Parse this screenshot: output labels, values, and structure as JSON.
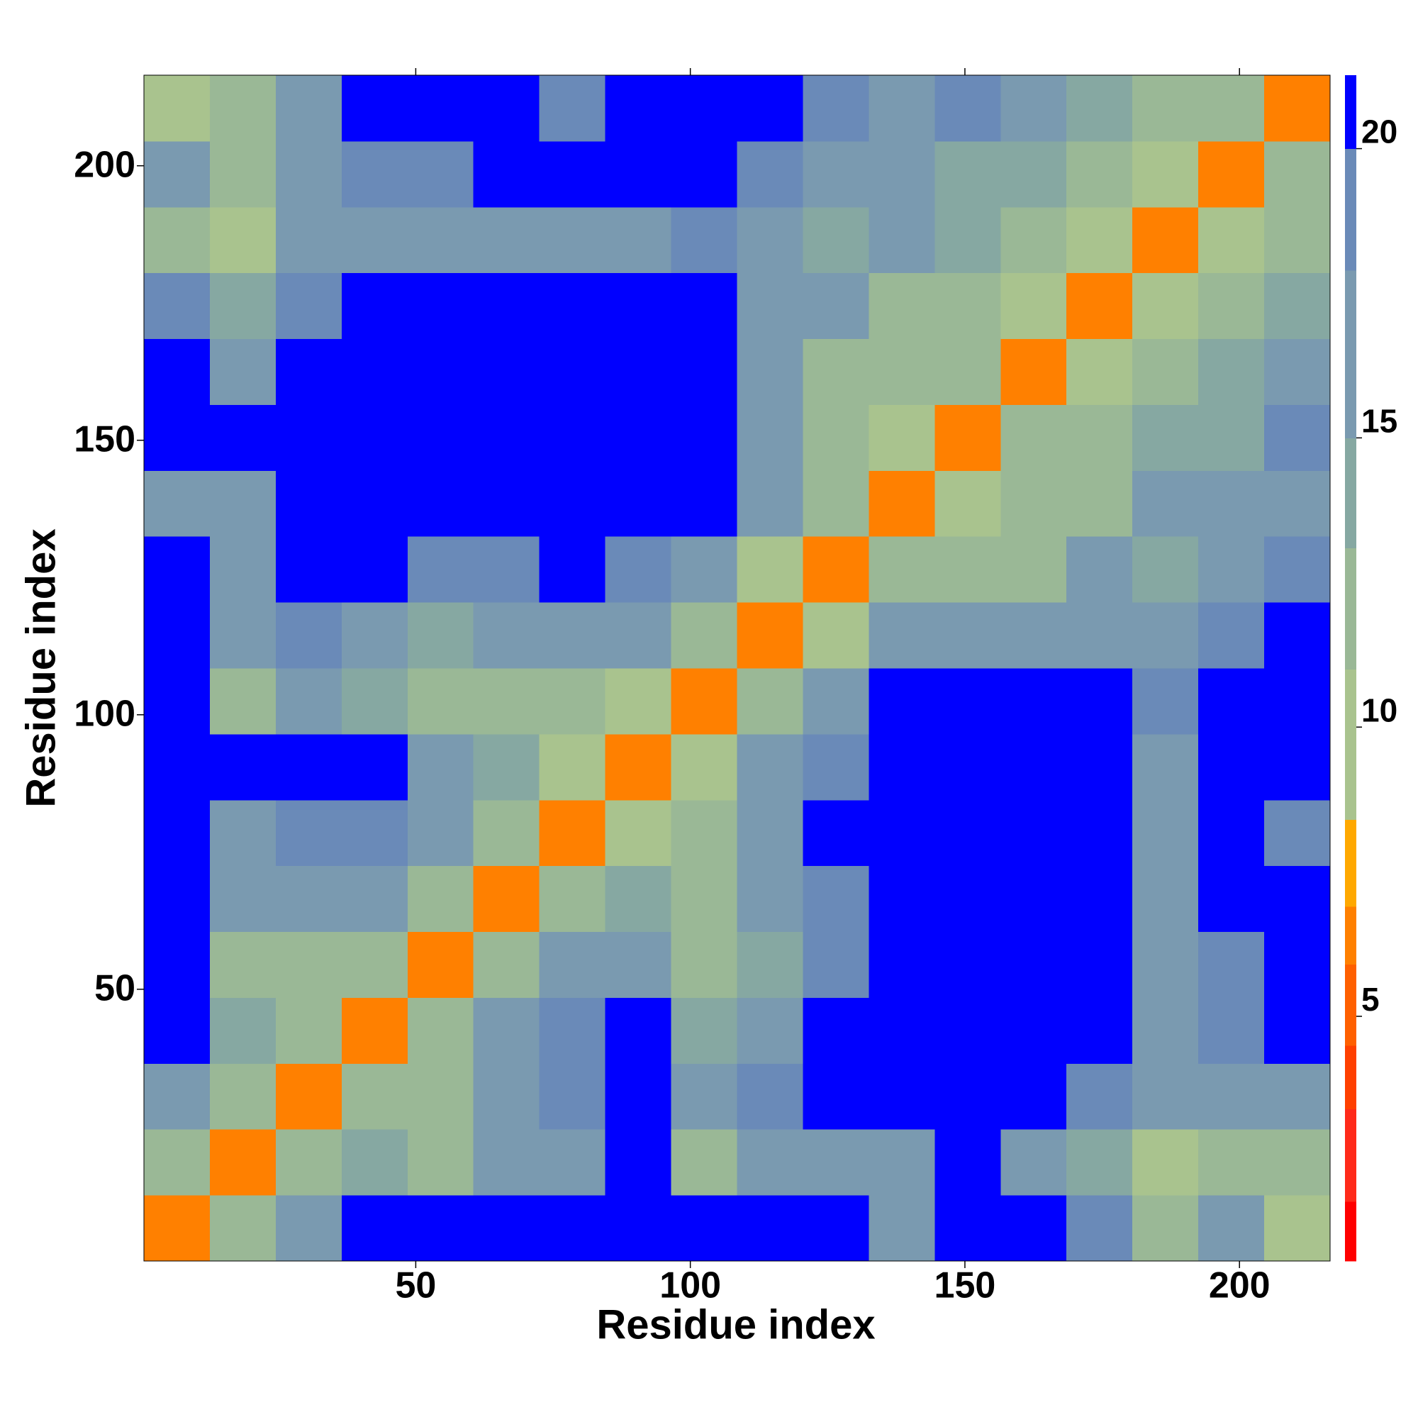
{
  "chart_data": {
    "type": "heatmap",
    "xlabel": "Residue index",
    "ylabel": "Residue index",
    "x_edges": [
      0.5,
      12.5,
      24.5,
      36.5,
      48.5,
      60.5,
      72.5,
      84.5,
      96.5,
      108.5,
      120.5,
      132.5,
      144.5,
      156.5,
      168.5,
      180.5,
      192.5,
      204.5,
      216.5
    ],
    "y_edges": [
      0.5,
      12.5,
      24.5,
      36.5,
      48.5,
      60.5,
      72.5,
      84.5,
      96.5,
      108.5,
      120.5,
      132.5,
      144.5,
      156.5,
      168.5,
      180.5,
      192.5,
      204.5,
      216.5
    ],
    "z": [
      [
        6,
        12,
        16,
        20,
        21,
        21,
        21,
        21,
        20,
        20,
        21,
        17,
        21,
        20,
        18,
        13,
        15,
        10
      ],
      [
        12,
        6,
        11,
        14,
        12,
        15,
        17,
        20,
        12,
        15,
        17,
        16,
        20,
        17,
        14,
        10,
        13,
        11
      ],
      [
        16,
        11,
        6,
        11,
        13,
        16,
        18,
        20,
        15,
        18,
        20,
        21,
        21,
        20,
        18,
        16,
        17,
        17
      ],
      [
        20,
        14,
        11,
        6,
        11,
        16,
        18,
        20,
        14,
        16,
        20,
        21,
        21,
        21,
        20,
        17,
        19,
        20
      ],
      [
        21,
        12,
        13,
        11,
        6,
        11,
        15,
        17,
        13,
        14,
        19,
        21,
        21,
        20,
        20,
        16,
        19,
        20
      ],
      [
        21,
        15,
        16,
        16,
        11,
        6,
        11,
        14,
        12,
        15,
        19,
        21,
        21,
        21,
        20,
        16,
        20,
        20
      ],
      [
        21,
        17,
        18,
        18,
        15,
        11,
        6,
        10,
        12,
        16,
        20,
        21,
        21,
        20,
        20,
        15,
        20,
        19
      ],
      [
        21,
        20,
        20,
        20,
        17,
        14,
        10,
        6,
        10,
        15,
        19,
        21,
        21,
        21,
        21,
        17,
        21,
        21
      ],
      [
        20,
        12,
        15,
        14,
        13,
        12,
        12,
        10,
        6,
        11,
        16,
        20,
        21,
        21,
        21,
        19,
        21,
        21
      ],
      [
        20,
        15,
        18,
        16,
        14,
        15,
        16,
        15,
        11,
        6,
        10,
        15,
        16,
        15,
        17,
        15,
        18,
        20
      ],
      [
        21,
        17,
        20,
        20,
        19,
        19,
        20,
        19,
        16,
        10,
        6,
        11,
        12,
        13,
        15,
        14,
        15,
        18
      ],
      [
        17,
        16,
        21,
        21,
        21,
        21,
        21,
        21,
        20,
        15,
        11,
        6,
        10,
        12,
        11,
        15,
        16,
        17
      ],
      [
        21,
        20,
        21,
        21,
        21,
        21,
        21,
        21,
        21,
        16,
        12,
        10,
        6,
        11,
        12,
        14,
        14,
        18
      ],
      [
        20,
        17,
        20,
        21,
        20,
        21,
        20,
        21,
        21,
        15,
        13,
        12,
        11,
        6,
        10,
        13,
        14,
        15
      ],
      [
        18,
        14,
        18,
        20,
        20,
        20,
        20,
        21,
        21,
        17,
        15,
        11,
        12,
        10,
        6,
        10,
        13,
        14
      ],
      [
        13,
        10,
        16,
        17,
        16,
        16,
        15,
        17,
        19,
        15,
        14,
        15,
        14,
        13,
        10,
        6,
        10,
        13
      ],
      [
        15,
        13,
        17,
        19,
        19,
        20,
        20,
        21,
        21,
        18,
        15,
        16,
        14,
        14,
        13,
        10,
        6,
        11
      ],
      [
        10,
        11,
        17,
        20,
        20,
        20,
        19,
        21,
        21,
        20,
        18,
        17,
        18,
        15,
        14,
        13,
        11,
        6
      ]
    ],
    "xlim": [
      0.5,
      216.5
    ],
    "ylim": [
      0.5,
      216.5
    ],
    "xticks": [
      50,
      100,
      150,
      200
    ],
    "yticks": [
      50,
      100,
      150,
      200
    ],
    "colorbar": {
      "levels": [
        0.77,
        1.8,
        3.4,
        4.5,
        5.9,
        6.9,
        8.4,
        11,
        13.1,
        15,
        17.9,
        20,
        21.27
      ],
      "colors": [
        "#ff0000",
        "#ff2a1a",
        "#ff4000",
        "#ff6000",
        "#ff8000",
        "#ffa800",
        "#a9c38e",
        "#9ab896",
        "#86a8a2",
        "#7a9ab0",
        "#6a8ab8",
        "#0000ff"
      ],
      "ticks": [
        5,
        10,
        15,
        20
      ]
    }
  }
}
